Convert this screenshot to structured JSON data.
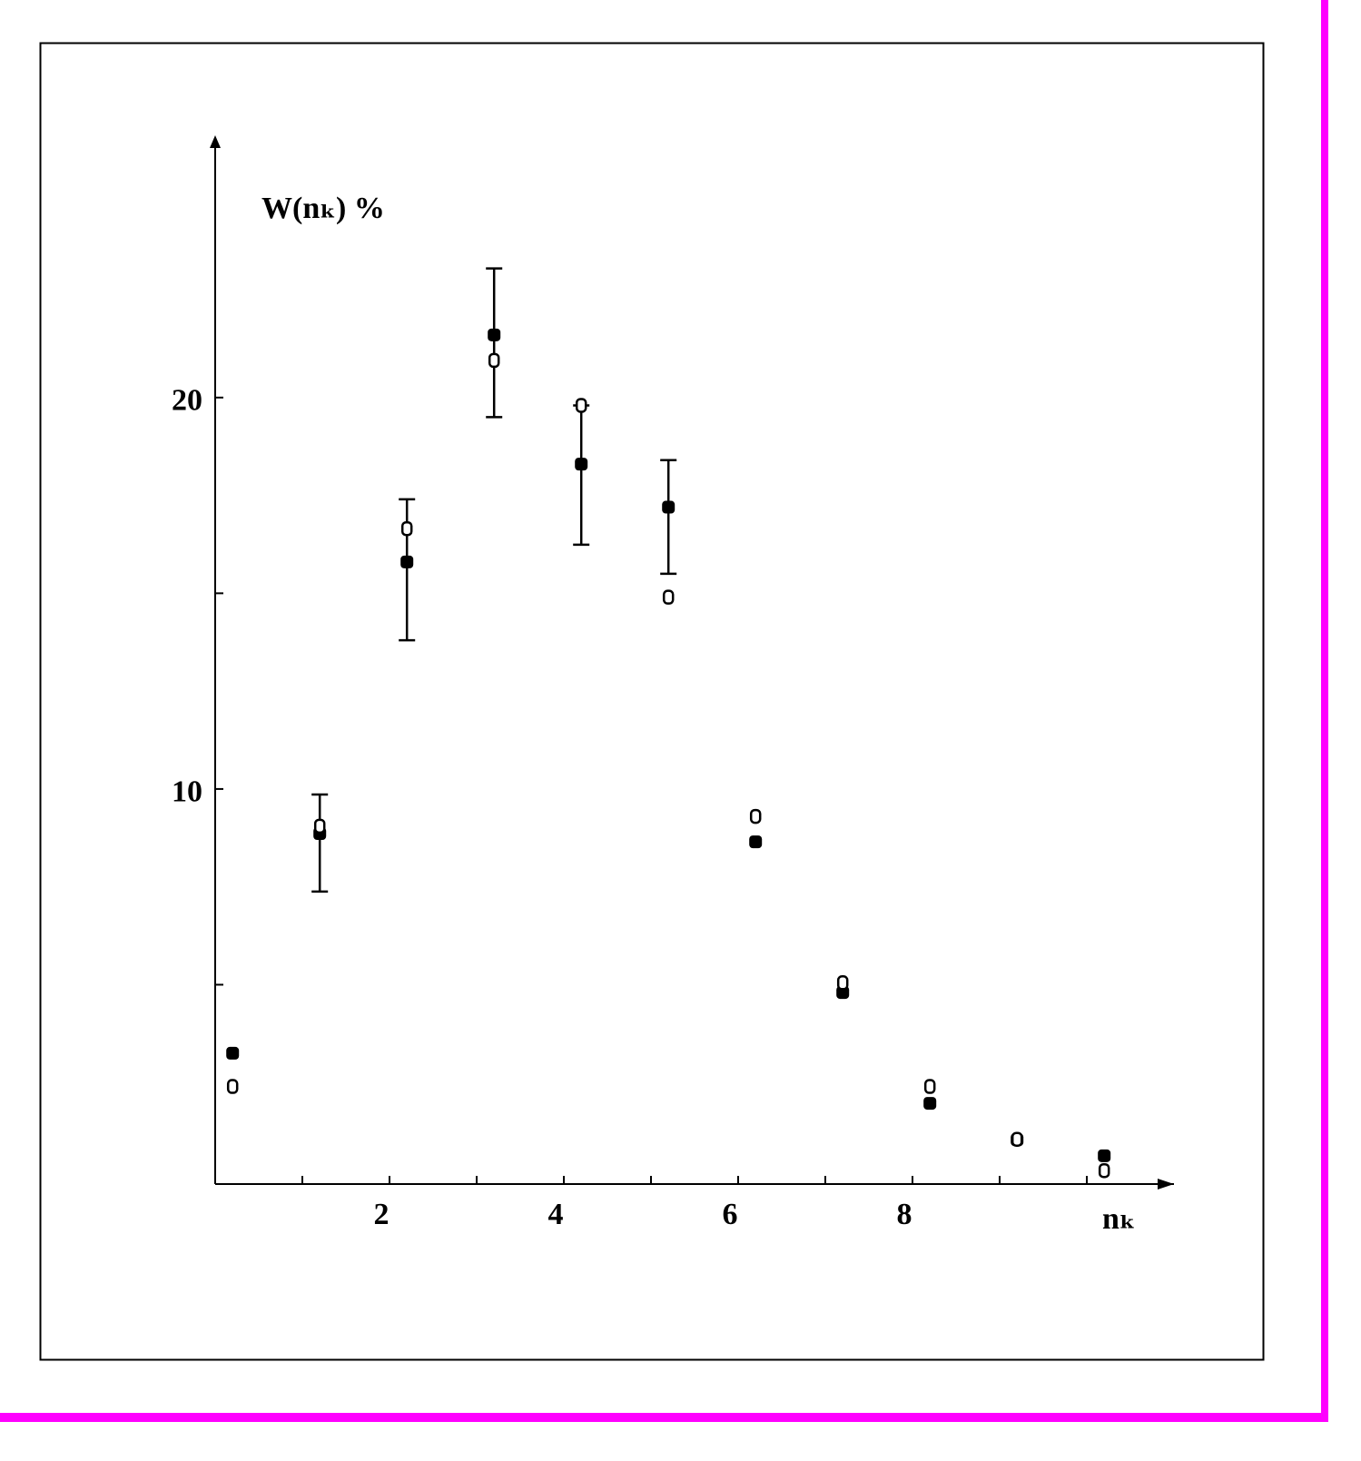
{
  "chart_data": {
    "type": "scatter",
    "y_label": "W(nₖ) %",
    "x_label": "nₖ",
    "x": [
      0.2,
      1.2,
      2.2,
      3.2,
      4.2,
      5.2,
      6.2,
      7.2,
      8.2,
      9.2,
      10.2
    ],
    "series": [
      {
        "marker": "filled",
        "color": "#000000",
        "values": [
          3.25,
          8.86,
          15.8,
          21.6,
          18.3,
          17.2,
          8.65,
          4.8,
          1.97,
          1.04,
          0.63
        ],
        "yerr_minus": [
          null,
          1.48,
          2.0,
          2.1,
          2.06,
          1.7,
          null,
          null,
          null,
          null,
          null
        ],
        "yerr_plus": [
          null,
          1.0,
          1.6,
          1.7,
          1.5,
          1.2,
          null,
          null,
          null,
          null,
          null
        ]
      },
      {
        "marker": "open",
        "color": "#000000",
        "values": [
          2.4,
          9.05,
          16.65,
          20.95,
          19.8,
          14.9,
          9.3,
          5.05,
          2.4,
          1.05,
          0.25
        ]
      }
    ],
    "xlim": [
      0,
      11
    ],
    "ylim": [
      0,
      26.7
    ],
    "xticks": [
      2,
      4,
      6,
      8
    ],
    "xminor_ticks": [
      1,
      3,
      5,
      7,
      9,
      10
    ],
    "yticks": [
      10,
      20
    ],
    "yminor_ticks": [
      5,
      15
    ]
  }
}
